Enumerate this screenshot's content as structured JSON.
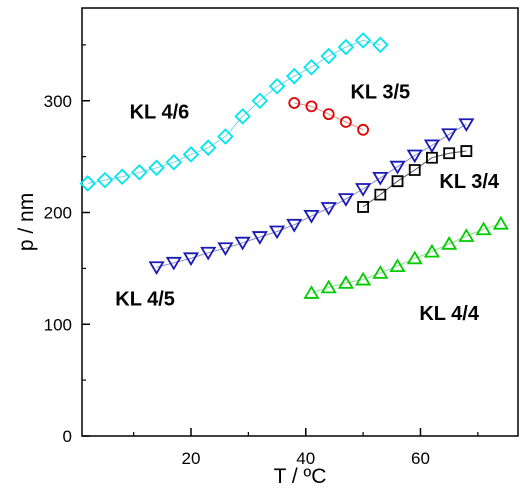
{
  "chart_data": {
    "type": "scatter",
    "xlabel": "T / ºC",
    "ylabel": "p / nm",
    "xlim": [
      1,
      77
    ],
    "ylim": [
      0,
      383
    ],
    "xticks": [
      20,
      40,
      60
    ],
    "yticks": [
      0,
      100,
      200,
      300
    ],
    "grid": false,
    "legend": "none",
    "series": [
      {
        "name": "KL 4/6",
        "marker": "diamond",
        "color": "#00e5ee",
        "line_color": "#7fd4e6",
        "x": [
          2,
          5,
          8,
          11,
          14,
          17,
          20,
          23,
          26,
          29,
          32,
          35,
          38,
          41,
          44,
          47,
          50,
          53
        ],
        "y": [
          226,
          229,
          232,
          236,
          240,
          245,
          252,
          258,
          268,
          286,
          300,
          313,
          322,
          330,
          340,
          348,
          354,
          350
        ]
      },
      {
        "name": "KL 3/5",
        "marker": "circle",
        "color": "#e00000",
        "line_color": "#e88a8a",
        "x": [
          38,
          41,
          44,
          47,
          50
        ],
        "y": [
          298,
          295,
          288,
          281,
          274
        ]
      },
      {
        "name": "KL 4/5",
        "marker": "triangle-down",
        "color": "#1a1ab4",
        "line_color": "#8a8ad8",
        "x": [
          14,
          17,
          20,
          23,
          26,
          29,
          32,
          35,
          38,
          41,
          44,
          47,
          50,
          53,
          56,
          59,
          62,
          65,
          68
        ],
        "y": [
          151,
          155,
          159,
          164,
          168,
          173,
          178,
          183,
          189,
          197,
          204,
          212,
          221,
          231,
          241,
          251,
          260,
          270,
          279
        ]
      },
      {
        "name": "KL 3/4",
        "marker": "square",
        "color": "#000000",
        "line_color": "#555555",
        "x": [
          50,
          53,
          56,
          59,
          62,
          65,
          68
        ],
        "y": [
          205,
          216,
          228,
          238,
          249,
          253,
          255
        ]
      },
      {
        "name": "KL 4/4",
        "marker": "triangle-up",
        "color": "#00cc00",
        "line_color": "#8ae08a",
        "x": [
          41,
          44,
          47,
          50,
          53,
          56,
          59,
          62,
          65,
          68,
          71,
          74
        ],
        "y": [
          128,
          133,
          137,
          140,
          146,
          152,
          159,
          165,
          172,
          179,
          185,
          190
        ]
      }
    ],
    "annotations": [
      {
        "text": "KL 4/6",
        "x": 14.5,
        "y": 284
      },
      {
        "text": "KL 3/5",
        "x": 53,
        "y": 302
      },
      {
        "text": "KL 3/4",
        "x": 68.5,
        "y": 222
      },
      {
        "text": "KL 4/5",
        "x": 12,
        "y": 117
      },
      {
        "text": "KL 4/4",
        "x": 65,
        "y": 104
      }
    ]
  }
}
